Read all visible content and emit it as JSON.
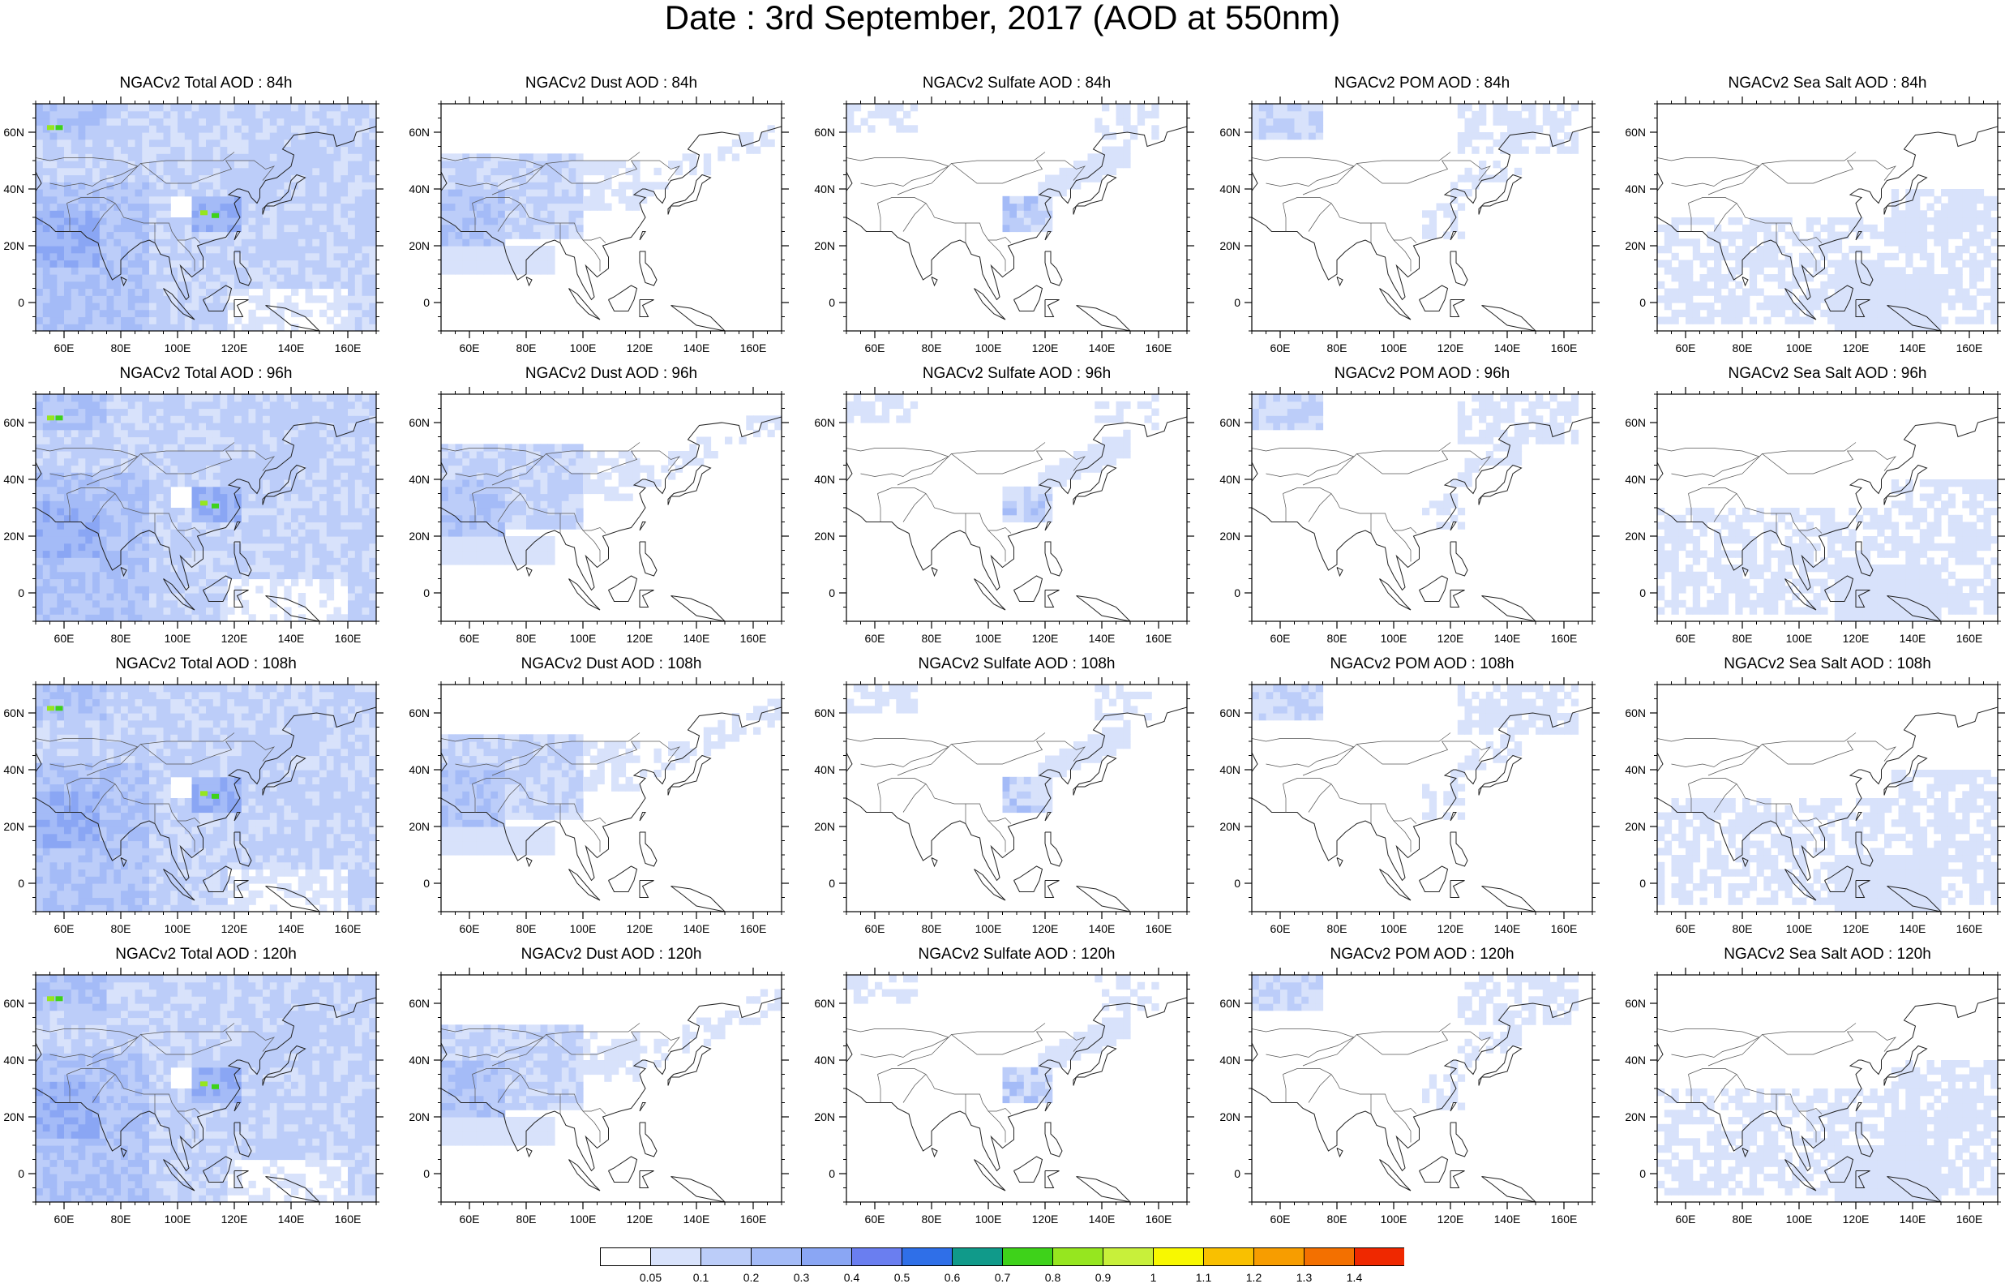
{
  "title": "Date : 3rd September, 2017 (AOD at 550nm)",
  "columns": [
    "Total",
    "Dust",
    "Sulfate",
    "POM",
    "Sea Salt"
  ],
  "lead_times": [
    "84h",
    "96h",
    "108h",
    "120h"
  ],
  "panels": [
    [
      "NGACv2 Total AOD : 84h",
      "NGACv2 Dust AOD : 84h",
      "NGACv2 Sulfate AOD : 84h",
      "NGACv2 POM AOD : 84h",
      "NGACv2 Sea Salt AOD : 84h"
    ],
    [
      "NGACv2 Total AOD : 96h",
      "NGACv2 Dust AOD : 96h",
      "NGACv2 Sulfate AOD : 96h",
      "NGACv2 POM AOD : 96h",
      "NGACv2 Sea Salt AOD : 96h"
    ],
    [
      "NGACv2 Total AOD : 108h",
      "NGACv2 Dust AOD : 108h",
      "NGACv2 Sulfate AOD : 108h",
      "NGACv2 POM AOD : 108h",
      "NGACv2 Sea Salt AOD : 108h"
    ],
    [
      "NGACv2 Total AOD : 120h",
      "NGACv2 Dust AOD : 120h",
      "NGACv2 Sulfate AOD : 120h",
      "NGACv2 POM AOD : 120h",
      "NGACv2 Sea Salt  AOD : 120h"
    ]
  ],
  "lon_ticks": [
    "60E",
    "80E",
    "100E",
    "120E",
    "140E",
    "160E"
  ],
  "lat_ticks": [
    "60N",
    "40N",
    "20N",
    "0"
  ],
  "lon_values": [
    60,
    80,
    100,
    120,
    140,
    160
  ],
  "lat_values": [
    60,
    40,
    20,
    0
  ],
  "map_extent": {
    "lon": [
      50,
      170
    ],
    "lat": [
      -10,
      70
    ]
  },
  "colorbar": {
    "labels": [
      "0.05",
      "0.1",
      "0.2",
      "0.3",
      "0.4",
      "0.5",
      "0.6",
      "0.7",
      "0.8",
      "0.9",
      "1",
      "1.1",
      "1.2",
      "1.3",
      "1.4"
    ],
    "colors": [
      "#ffffff",
      "#d8e2fb",
      "#bccdf9",
      "#a4bbf7",
      "#8aa6f4",
      "#6a7ef0",
      "#2f6fe8",
      "#109a8a",
      "#3ed21a",
      "#96e61f",
      "#c8f03a",
      "#f8f800",
      "#f9c000",
      "#f79d00",
      "#f37000",
      "#ef2800"
    ]
  },
  "region_colors": {
    "bg_light": "#d8e2fb",
    "mid": "#bccdf9",
    "high": "#a4bbf7",
    "higher": "#8aa6f4",
    "strong": "#6a7ef0",
    "green": "#3ed21a",
    "lime": "#96e61f"
  }
}
